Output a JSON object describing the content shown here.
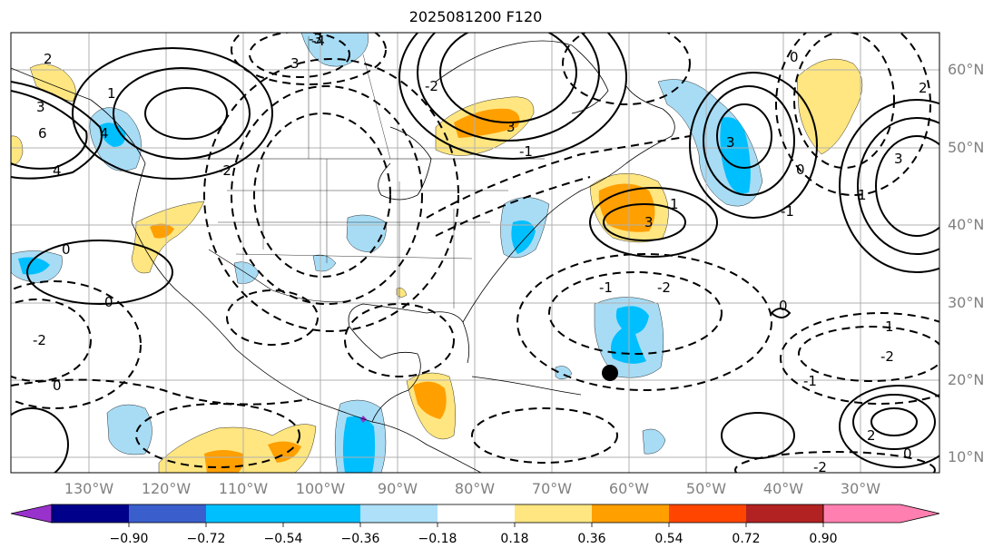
{
  "title": "2025081200 F120",
  "map": {
    "longitude_labels": [
      "130°W",
      "120°W",
      "110°W",
      "100°W",
      "90°W",
      "80°W",
      "70°W",
      "60°W",
      "50°W",
      "40°W",
      "30°W"
    ],
    "latitude_labels": [
      "60°N",
      "50°N",
      "40°N",
      "30°N",
      "20°N",
      "10°N"
    ],
    "contour_labels": [
      "4",
      "2",
      "1",
      "3",
      "6",
      "4",
      "-2",
      "0",
      "3",
      "3",
      "-3",
      "-4",
      "-2",
      "-1",
      "3",
      "1",
      "3",
      "0",
      "2",
      "3",
      "1",
      "0",
      "-1",
      "-2",
      "-1",
      "-2",
      "0",
      "0",
      "-2",
      "0",
      "2",
      "1",
      "-1",
      "-2",
      "0"
    ],
    "marker": "black-dot",
    "field_colors": {
      "neg_light": "#a8dcf5",
      "neg_mid": "#00bfff",
      "pos_light": "#ffe680",
      "pos_mid": "#ff9f00"
    }
  },
  "colorbar": {
    "ticks": [
      "−0.90",
      "−0.72",
      "−0.54",
      "−0.36",
      "−0.18",
      "0.18",
      "0.36",
      "0.54",
      "0.72",
      "0.90"
    ],
    "colors": [
      "#9932cc",
      "#00008b",
      "#3a5fcd",
      "#00bfff",
      "#aee0fa",
      "#ffffff",
      "#ffe680",
      "#ff9f00",
      "#ff4500",
      "#b22222",
      "#ff80b0"
    ]
  }
}
